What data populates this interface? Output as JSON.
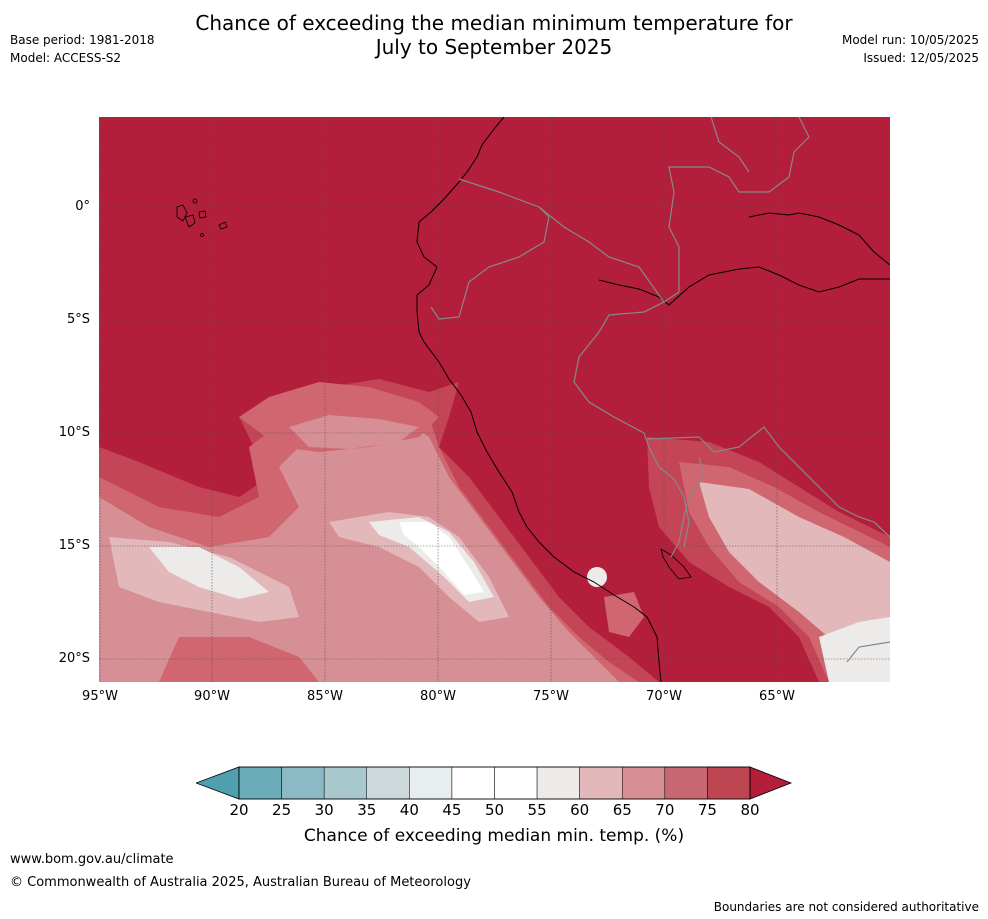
{
  "header": {
    "title_line1": "Chance of exceeding the median minimum temperature for",
    "title_line2": "July to September 2025",
    "base_period": "Base period: 1981-2018",
    "model": "Model: ACCESS-S2",
    "model_run": "Model run: 10/05/2025",
    "issued": "Issued: 12/05/2025"
  },
  "map": {
    "lat_labels": [
      "0°",
      "5°S",
      "10°S",
      "15°S",
      "20°S"
    ],
    "lon_labels": [
      "95°W",
      "90°W",
      "85°W",
      "80°W",
      "75°W",
      "70°W",
      "65°W"
    ],
    "colors": {
      "c80": "#b31e3a",
      "c75": "#c44556",
      "c70": "#cf6670",
      "c65": "#d68f95",
      "c60": "#e2b8bb",
      "c55": "#ecebea",
      "c50": "#ffffff"
    }
  },
  "colorbar": {
    "ticks": [
      "20",
      "25",
      "30",
      "35",
      "40",
      "45",
      "50",
      "55",
      "60",
      "65",
      "70",
      "75",
      "80"
    ],
    "colors": [
      "#6badb9",
      "#8bbac4",
      "#a8c8cd",
      "#cdd8da",
      "#e8eef0",
      "#ffffff",
      "#ffffff",
      "#ecebea",
      "#e2b8bb",
      "#d68f95",
      "#c86872",
      "#be4652"
    ],
    "under_color": "#4fa0ae",
    "over_color": "#b31e3a",
    "label": "Chance of exceeding median min. temp. (%)"
  },
  "footer": {
    "website": "www.bom.gov.au/climate",
    "copyright": "© Commonwealth of Australia 2025, Australian Bureau of Meteorology",
    "disclaimer": "Boundaries are not considered authoritative"
  }
}
